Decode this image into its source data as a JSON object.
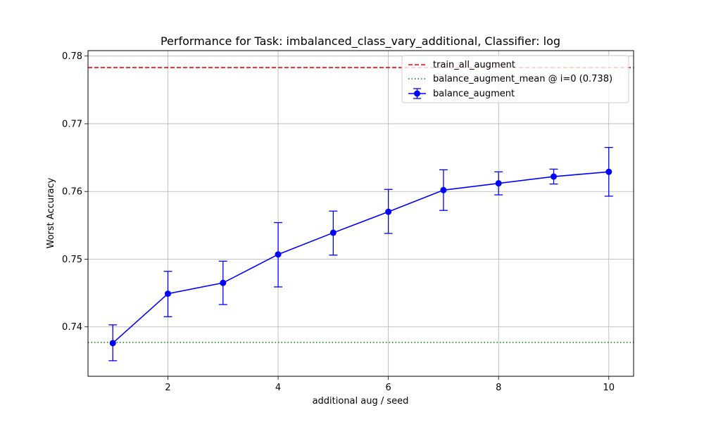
{
  "chart_data": {
    "type": "line",
    "title": "Performance for Task: imbalanced_class_vary_additional, Classifier: log",
    "xlabel": "additional aug / seed",
    "ylabel": "Worst Accuracy",
    "xlim": [
      0.55,
      10.45
    ],
    "ylim": [
      0.7327,
      0.7808
    ],
    "xticks": [
      2,
      4,
      6,
      8,
      10
    ],
    "yticks": [
      0.74,
      0.75,
      0.76,
      0.77,
      0.78
    ],
    "grid": true,
    "legend_position": "top-right",
    "series": [
      {
        "name": "balance_augment",
        "color": "#0000ff",
        "marker": "circle",
        "x": [
          1,
          2,
          3,
          4,
          5,
          6,
          7,
          8,
          9,
          10
        ],
        "y": [
          0.7376,
          0.7449,
          0.7465,
          0.7507,
          0.7539,
          0.757,
          0.7602,
          0.7612,
          0.7622,
          0.7629
        ],
        "error_low": [
          0.735,
          0.7415,
          0.7433,
          0.7459,
          0.7506,
          0.7538,
          0.7572,
          0.7595,
          0.7611,
          0.7593
        ],
        "error_high": [
          0.7403,
          0.7482,
          0.7497,
          0.7554,
          0.7571,
          0.7603,
          0.7632,
          0.7629,
          0.7633,
          0.7665
        ]
      }
    ],
    "reference_lines": [
      {
        "name": "train_all_augment",
        "y": 0.7783,
        "color": "#ff0000",
        "style": "dashed"
      },
      {
        "name": "balance_augment_mean @ i=0 (0.738)",
        "y": 0.7377,
        "color": "#008000",
        "style": "dotted"
      }
    ]
  }
}
